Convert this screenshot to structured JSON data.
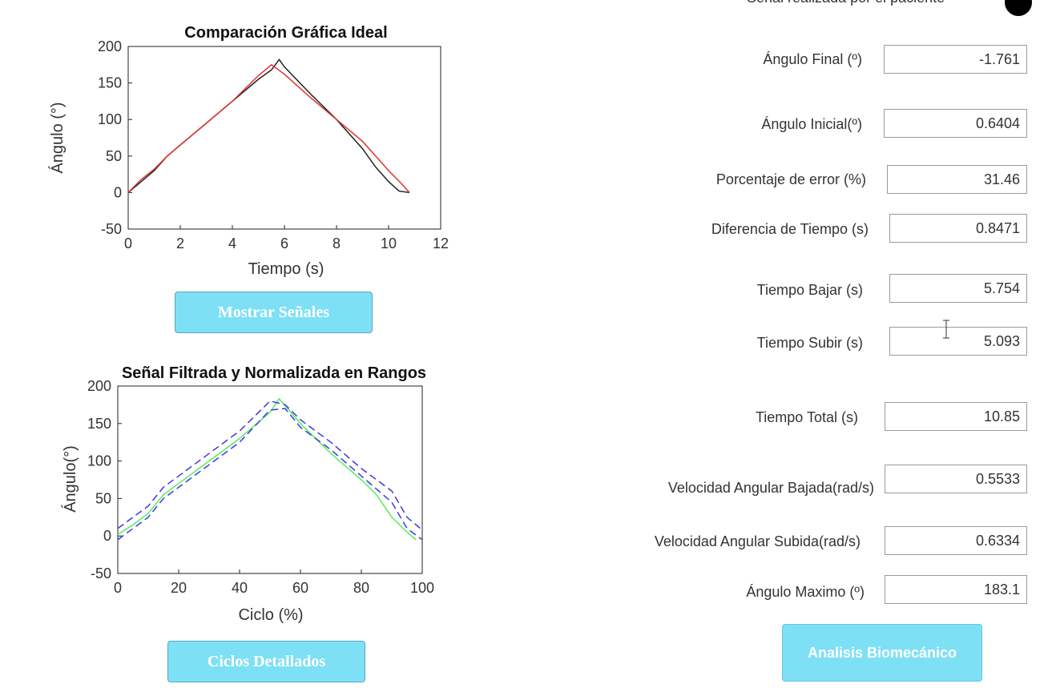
{
  "top": {
    "lamp_label": "Señal realizada por el paciente"
  },
  "charts": [
    {
      "title": "Comparación Gráfica Ideal",
      "xlabel": "Tiempo (s)",
      "ylabel": "Ángulo (°)",
      "xticks": [
        "0",
        "2",
        "4",
        "6",
        "8",
        "10",
        "12"
      ],
      "yticks": [
        "-50",
        "0",
        "50",
        "100",
        "150",
        "200"
      ]
    },
    {
      "title": "Señal Filtrada y Normalizada en Rangos",
      "xlabel": "Ciclo (%)",
      "ylabel": "Ángulo(°)",
      "xticks": [
        "0",
        "20",
        "40",
        "60",
        "80",
        "100"
      ],
      "yticks": [
        "-50",
        "0",
        "50",
        "100",
        "150",
        "200"
      ]
    }
  ],
  "chart_data": [
    {
      "type": "line",
      "title": "Comparación Gráfica Ideal",
      "xlabel": "Tiempo (s)",
      "ylabel": "Ángulo (°)",
      "xlim": [
        0,
        12
      ],
      "ylim": [
        -50,
        200
      ],
      "grid": false,
      "series": [
        {
          "color": "#222222",
          "x": [
            0,
            0.5,
            1,
            1.5,
            2,
            3,
            4,
            5,
            5.5,
            5.8,
            6,
            7,
            8,
            9,
            9.5,
            10,
            10.4,
            10.8
          ],
          "y": [
            0,
            15,
            30,
            50,
            65,
            95,
            125,
            155,
            168,
            182,
            172,
            135,
            100,
            60,
            35,
            15,
            2,
            0
          ]
        },
        {
          "color": "#e03030",
          "x": [
            0,
            0.5,
            1,
            1.5,
            2,
            3,
            4,
            5,
            5.5,
            6,
            7,
            8,
            9,
            9.5,
            10,
            10.5,
            10.8
          ],
          "y": [
            0,
            18,
            32,
            50,
            65,
            95,
            125,
            160,
            175,
            162,
            130,
            100,
            70,
            50,
            30,
            12,
            0
          ]
        }
      ]
    },
    {
      "type": "line",
      "title": "Señal Filtrada y Normalizada en Rangos",
      "xlabel": "Ciclo (%)",
      "ylabel": "Ángulo(°)",
      "xlim": [
        0,
        100
      ],
      "ylim": [
        -50,
        200
      ],
      "grid": false,
      "series": [
        {
          "color": "#55ee55",
          "x": [
            0,
            5,
            10,
            15,
            20,
            30,
            40,
            50,
            53,
            60,
            70,
            80,
            85,
            90,
            95,
            98
          ],
          "y": [
            2,
            15,
            30,
            55,
            70,
            100,
            130,
            165,
            183,
            150,
            110,
            75,
            55,
            25,
            5,
            -5
          ]
        },
        {
          "color": "#3a3ae0",
          "dashed": true,
          "x": [
            0,
            5,
            10,
            15,
            20,
            30,
            40,
            50,
            55,
            60,
            70,
            80,
            90,
            95,
            100
          ],
          "y": [
            10,
            25,
            40,
            65,
            80,
            110,
            140,
            180,
            175,
            155,
            125,
            90,
            60,
            25,
            8
          ]
        },
        {
          "color": "#3a3ae0",
          "dashed": true,
          "x": [
            0,
            5,
            10,
            15,
            20,
            30,
            40,
            50,
            55,
            60,
            70,
            80,
            90,
            95,
            100
          ],
          "y": [
            -5,
            10,
            25,
            50,
            65,
            95,
            125,
            168,
            170,
            145,
            115,
            80,
            45,
            10,
            -5
          ]
        }
      ]
    }
  ],
  "buttons": {
    "mostrar": "Mostrar Señales",
    "ciclos": "Ciclos Detallados",
    "analisis": "Analisis Biomecánico"
  },
  "fields": [
    {
      "label": "Ángulo Final (º)",
      "value": "-1.761"
    },
    {
      "label": "Ángulo Inicial(º)",
      "value": "0.6404"
    },
    {
      "label": "Porcentaje de error (%)",
      "value": "31.46"
    },
    {
      "label": "Diferencia de Tiempo (s)",
      "value": "0.8471"
    },
    {
      "label": "Tiempo Bajar (s)",
      "value": "5.754"
    },
    {
      "label": "Tiempo Subir (s)",
      "value": "5.093"
    },
    {
      "label": "Tiempo Total (s)",
      "value": "10.85"
    },
    {
      "label": "Velocidad Angular Bajada(rad/s)",
      "value": "0.5533"
    },
    {
      "label": "Velocidad Angular Subida(rad/s)",
      "value": "0.6334"
    },
    {
      "label": "Ángulo Maximo (º)",
      "value": "183.1"
    }
  ]
}
